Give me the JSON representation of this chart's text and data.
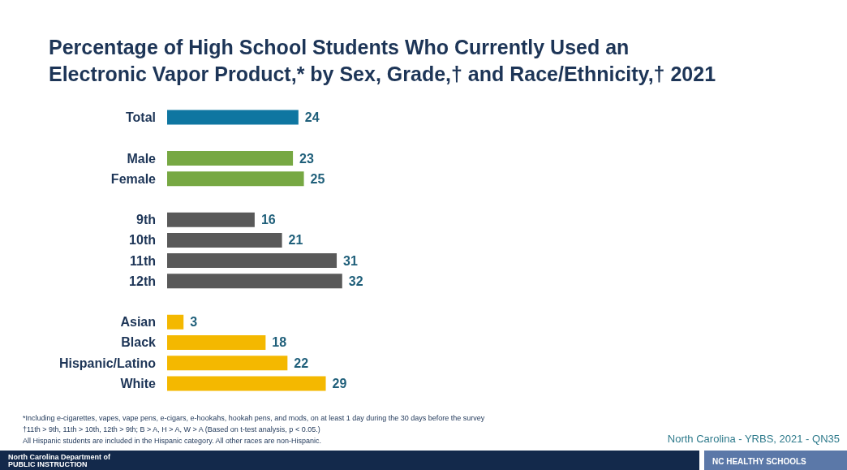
{
  "chart_data": {
    "type": "bar",
    "orientation": "horizontal",
    "title": "Percentage of High School Students Who Currently Used an\nElectronic Vapor Product,* by Sex, Grade,† and Race/Ethnicity,† 2021",
    "categories": [
      "Total",
      null,
      "Male",
      "Female",
      null,
      "9th",
      "10th",
      "11th",
      "12th",
      null,
      "Asian",
      "Black",
      "Hispanic/Latino",
      "White"
    ],
    "values": [
      24,
      null,
      23,
      25,
      null,
      16,
      21,
      31,
      32,
      null,
      3,
      18,
      22,
      29
    ],
    "colors": [
      "#0f76a1",
      null,
      "#77a843",
      "#77a843",
      null,
      "#595959",
      "#595959",
      "#595959",
      "#595959",
      null,
      "#f4b800",
      "#f4b800",
      "#f4b800",
      "#f4b800"
    ],
    "data_labels": true,
    "annotations": [
      "*Including e-cigarettes, vapes, vape pens, e-cigars, e-hookahs, hookah pens, and mods, on at least 1 day during the 30 days before the survey",
      "†11th > 9th, 11th > 10th, 12th > 9th; B > A, H > A, W > A (Based on t-test analysis, p < 0.05.)",
      "All Hispanic students are included in the Hispanic category.  All other races are non-Hispanic.",
      "North Carolina - YRBS, 2021 - QN35",
      "North Carolina Department of PUBLIC INSTRUCTION",
      "NC HEALTHY SCHOOLS"
    ]
  }
}
